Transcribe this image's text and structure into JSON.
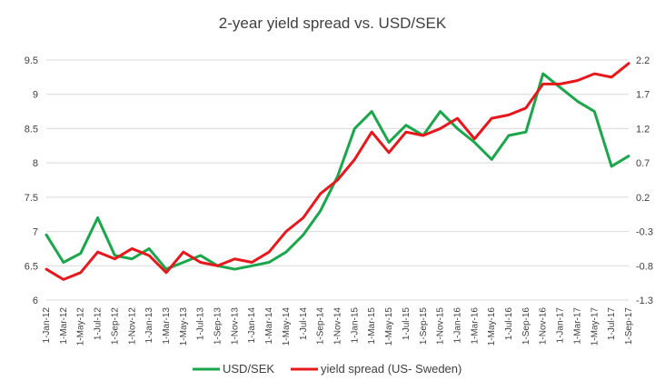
{
  "chart_data": {
    "type": "line",
    "title": "2-year yield spread vs. USD/SEK",
    "grid": true,
    "legend_position": "bottom",
    "x_ticks": [
      "1-Jan-12",
      "1-Mar-12",
      "1-May-12",
      "1-Jul-12",
      "1-Sep-12",
      "1-Nov-12",
      "1-Jan-13",
      "1-Mar-13",
      "1-May-13",
      "1-Jul-13",
      "1-Sep-13",
      "1-Nov-13",
      "1-Jan-14",
      "1-Mar-14",
      "1-May-14",
      "1-Jul-14",
      "1-Sep-14",
      "1-Nov-14",
      "1-Jan-15",
      "1-Mar-15",
      "1-May-15",
      "1-Jul-15",
      "1-Sep-15",
      "1-Nov-15",
      "1-Jan-16",
      "1-Mar-16",
      "1-May-16",
      "1-Jul-16",
      "1-Sep-16",
      "1-Nov-16",
      "1-Jan-17",
      "1-Mar-17",
      "1-May-17",
      "1-Jul-17",
      "1-Sep-17"
    ],
    "y_left": {
      "min": 6,
      "max": 9.5,
      "ticks": [
        "6",
        "6.5",
        "7",
        "7.5",
        "8",
        "8.5",
        "9",
        "9.5"
      ]
    },
    "y_right": {
      "min": -1.3,
      "max": 2.2,
      "ticks": [
        "-1.3",
        "-0.8",
        "-0.3",
        "0.2",
        "0.7",
        "1.2",
        "1.7",
        "2.2"
      ]
    },
    "series": [
      {
        "name": "USD/SEK",
        "axis": "left",
        "color": "#1aa64a",
        "values": [
          6.95,
          6.55,
          6.68,
          7.2,
          6.65,
          6.6,
          6.75,
          6.45,
          6.55,
          6.65,
          6.5,
          6.45,
          6.5,
          6.55,
          6.7,
          6.95,
          7.3,
          7.8,
          8.5,
          8.75,
          8.3,
          8.55,
          8.4,
          8.75,
          8.5,
          8.3,
          8.05,
          8.4,
          8.45,
          9.3,
          9.1,
          8.9,
          8.75,
          7.95,
          8.1
        ]
      },
      {
        "name": "yield spread (US- Sweden)",
        "axis": "right",
        "color": "#e8171b",
        "values": [
          -0.85,
          -1.0,
          -0.9,
          -0.6,
          -0.7,
          -0.55,
          -0.65,
          -0.9,
          -0.6,
          -0.75,
          -0.8,
          -0.7,
          -0.75,
          -0.6,
          -0.3,
          -0.1,
          0.25,
          0.45,
          0.75,
          1.15,
          0.85,
          1.15,
          1.1,
          1.2,
          1.35,
          1.05,
          1.35,
          1.4,
          1.5,
          1.85,
          1.85,
          1.9,
          2.0,
          1.95,
          2.15
        ]
      }
    ]
  }
}
